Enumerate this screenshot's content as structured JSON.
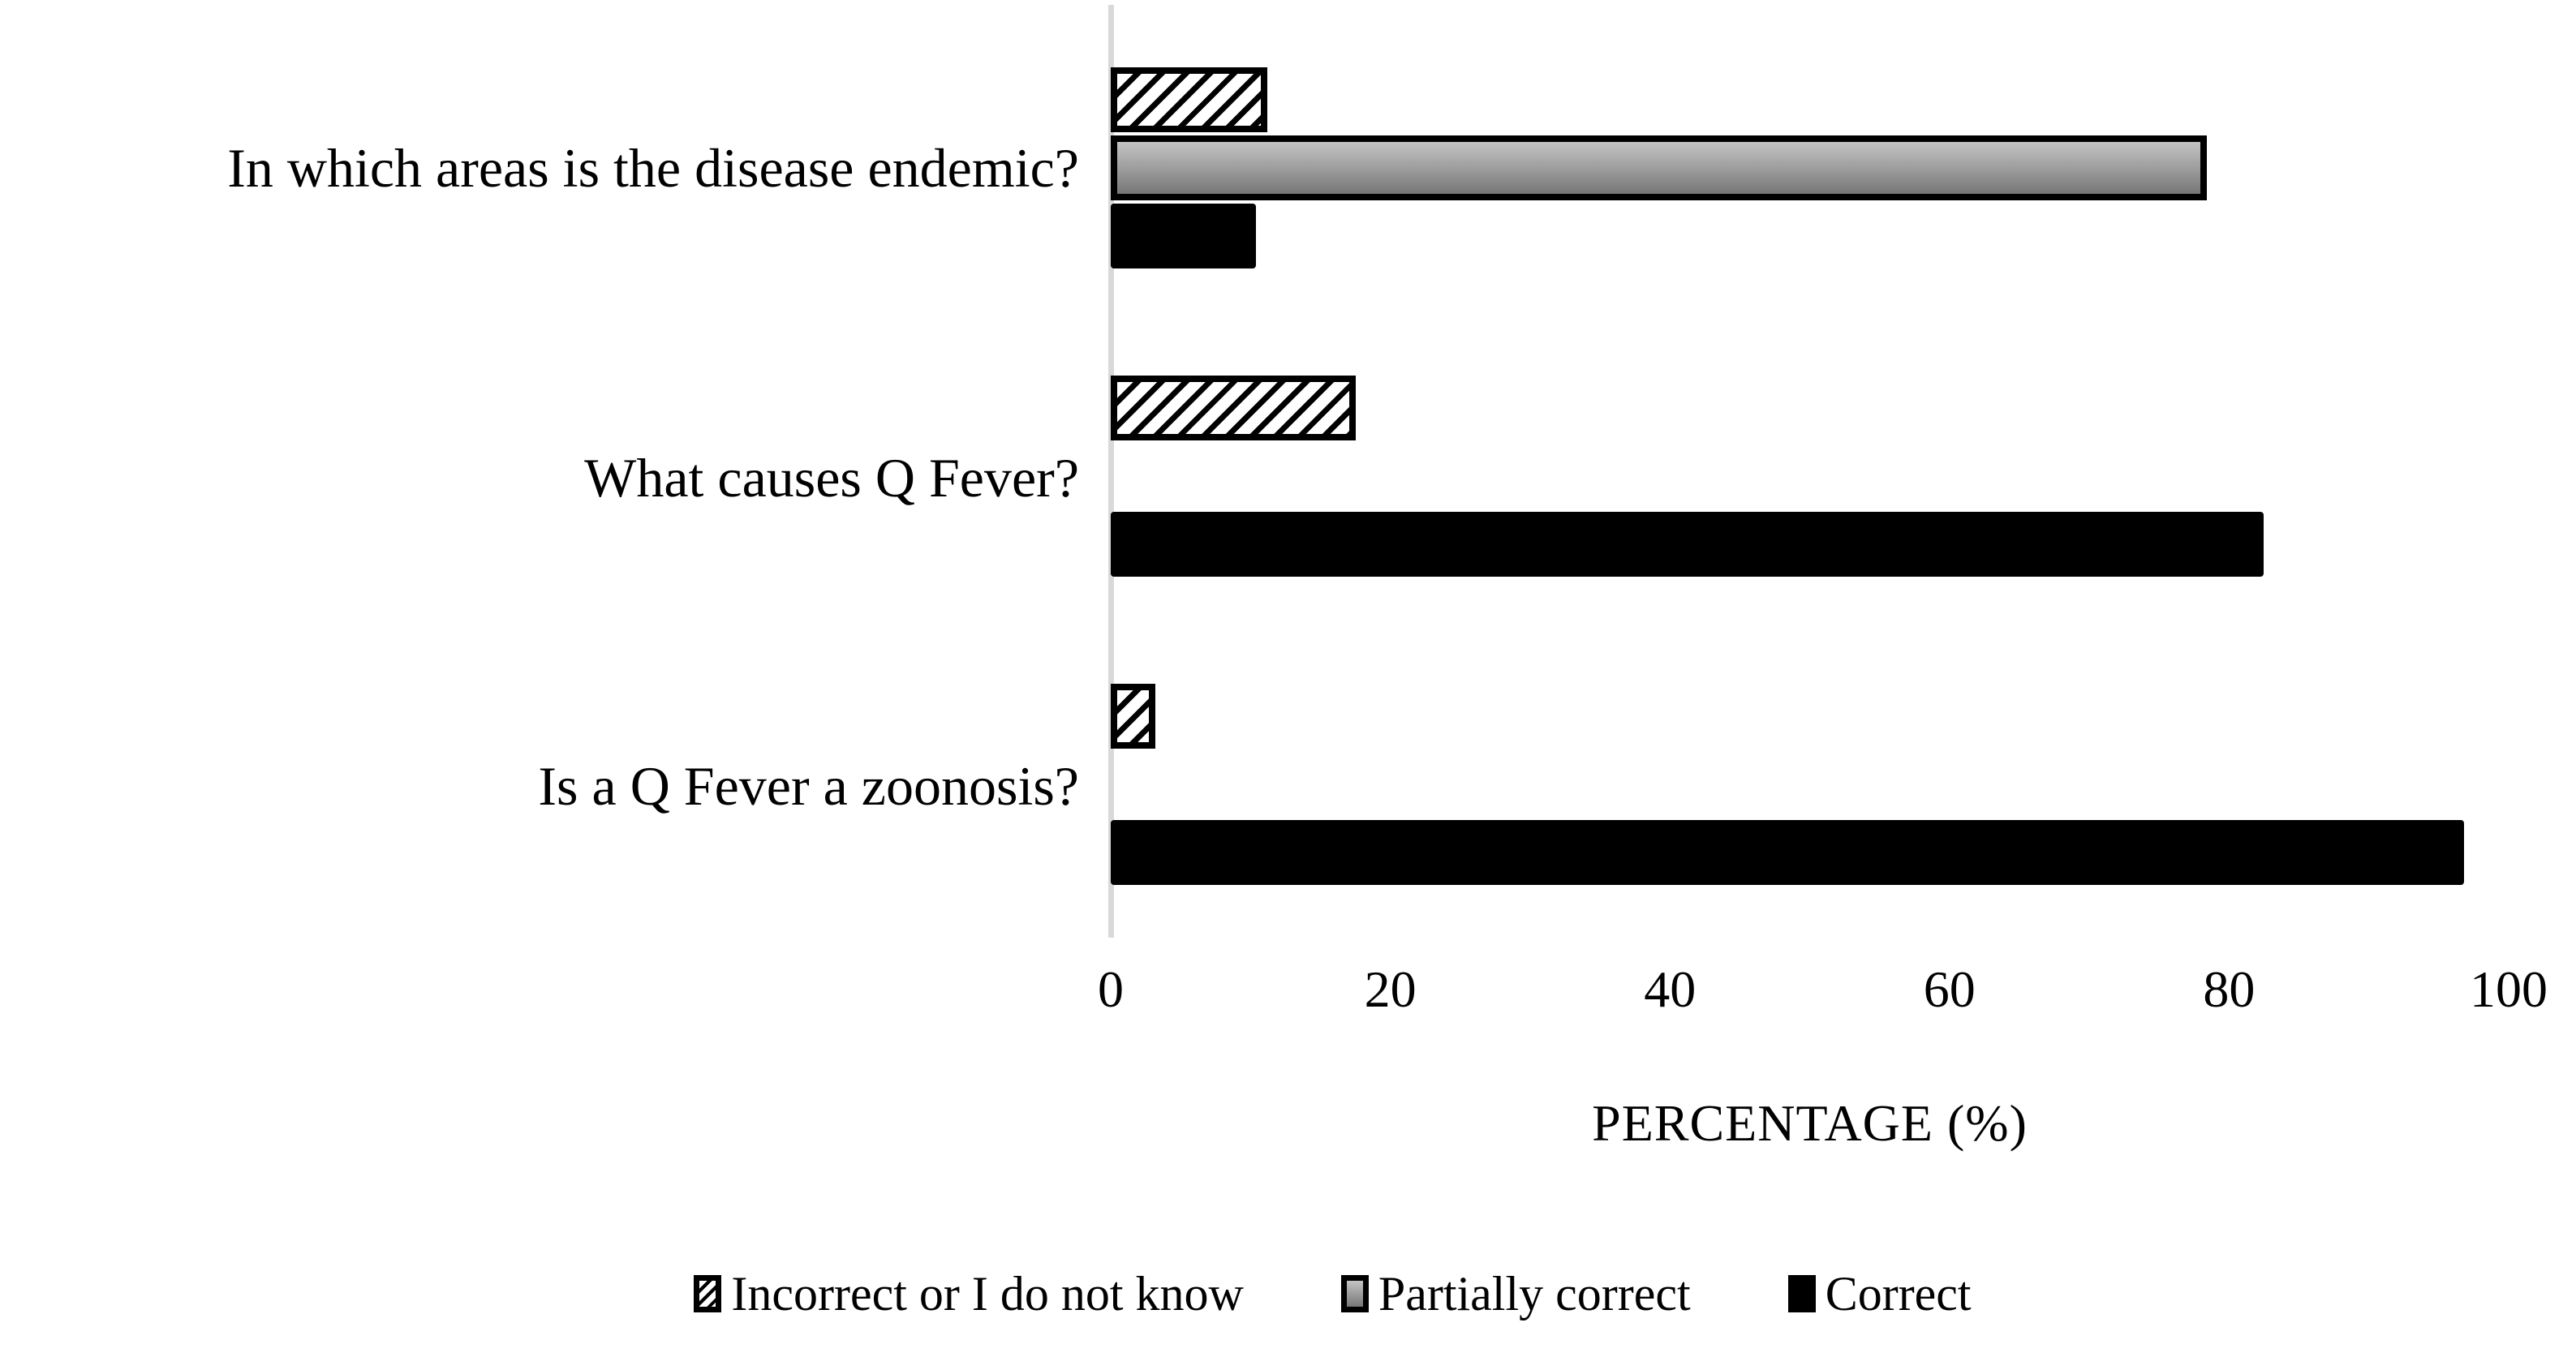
{
  "chart_data": {
    "type": "bar",
    "orientation": "horizontal",
    "title": "",
    "categories": [
      "In which areas is the disease endemic?",
      "What causes Q Fever?",
      "Is a Q Fever a zoonosis?"
    ],
    "series": [
      {
        "name": "Incorrect or I do not know",
        "style": "hatched",
        "values": [
          11.2,
          17.5,
          3.2
        ]
      },
      {
        "name": "Partially correct",
        "style": "gray-gradient",
        "values": [
          78.4,
          0,
          0
        ]
      },
      {
        "name": "Correct",
        "style": "black",
        "values": [
          10.4,
          82.5,
          96.8
        ]
      }
    ],
    "xlabel": "PERCENTAGE (%)",
    "ylabel": "",
    "x_ticks": [
      0,
      20,
      40,
      60,
      80,
      100
    ],
    "xlim": [
      0,
      100
    ],
    "grid": false,
    "legend_position": "bottom"
  },
  "colors": {
    "bar_black": "#000000",
    "bar_gray_top": "#c4c4c4",
    "bar_gray_bottom": "#767676",
    "hatch_stripe": "#000000",
    "hatch_background": "#ffffff",
    "axis_line": "#d9d9d9",
    "text": "#000000",
    "background": "#ffffff"
  }
}
